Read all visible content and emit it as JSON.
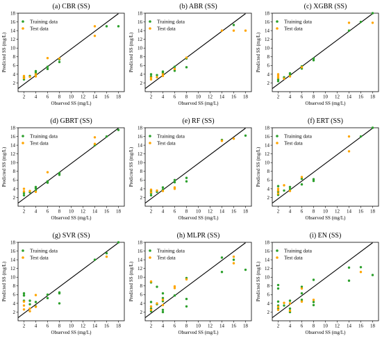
{
  "colors": {
    "training": "#2ca02c",
    "test": "#ffa500",
    "line": "#000000"
  },
  "shared": {
    "xlabel": "Observed SS (mg/L)",
    "ylabel": "Predicted SS (mg/L)",
    "xlim": [
      1,
      19
    ],
    "ylim": [
      0,
      18
    ],
    "xticks": [
      "2",
      "4",
      "6",
      "8",
      "10",
      "12",
      "14",
      "16",
      "18"
    ],
    "yticks": [
      "2",
      "4",
      "6",
      "8",
      "10",
      "12",
      "14",
      "16",
      "18"
    ],
    "legend": {
      "training": "Training data",
      "test": "Test data",
      "position": "upper-left"
    }
  },
  "chart_data": [
    {
      "type": "scatter",
      "title": "(a) CBR (SS)",
      "series": [
        {
          "name": "Training data",
          "points": [
            [
              2,
              2.8
            ],
            [
              2,
              3.3
            ],
            [
              3,
              3.6
            ],
            [
              4,
              3.9
            ],
            [
              4,
              4.3
            ],
            [
              4,
              4.7
            ],
            [
              6,
              5.2
            ],
            [
              6,
              5.7
            ],
            [
              8,
              6.8
            ],
            [
              8,
              7.4
            ],
            [
              16,
              15
            ],
            [
              18,
              15
            ]
          ]
        },
        {
          "name": "Test data",
          "points": [
            [
              2,
              3.1
            ],
            [
              2,
              3.6
            ],
            [
              3,
              3.4
            ],
            [
              4,
              3.5
            ],
            [
              4,
              4.0
            ],
            [
              6,
              7.7
            ],
            [
              8,
              7.6
            ],
            [
              14,
              15
            ],
            [
              14,
              12.8
            ]
          ]
        }
      ]
    },
    {
      "type": "scatter",
      "title": "(b) ABR (SS)",
      "series": [
        {
          "name": "Training data",
          "points": [
            [
              2,
              3.5
            ],
            [
              2,
              4.0
            ],
            [
              3,
              3.8
            ],
            [
              4,
              4.3
            ],
            [
              4,
              4.6
            ],
            [
              6,
              4.8
            ],
            [
              6,
              5.7
            ],
            [
              8,
              5.6
            ],
            [
              8,
              7.6
            ],
            [
              16,
              15.3
            ]
          ]
        },
        {
          "name": "Test data",
          "points": [
            [
              2,
              2.8
            ],
            [
              2,
              3.2
            ],
            [
              3,
              3.3
            ],
            [
              4,
              3.6
            ],
            [
              4,
              4.0
            ],
            [
              6,
              5.2
            ],
            [
              8,
              7.8
            ],
            [
              16,
              14
            ],
            [
              18,
              14
            ],
            [
              14,
              14
            ]
          ]
        }
      ]
    },
    {
      "type": "scatter",
      "title": "(c) XGBR (SS)",
      "series": [
        {
          "name": "Training data",
          "points": [
            [
              2,
              2.4
            ],
            [
              2,
              2.8
            ],
            [
              3,
              3.3
            ],
            [
              4,
              3.8
            ],
            [
              4,
              4.2
            ],
            [
              6,
              5.3
            ],
            [
              6,
              5.8
            ],
            [
              8,
              7.2
            ],
            [
              8,
              7.6
            ],
            [
              14,
              14
            ],
            [
              16,
              16
            ],
            [
              18,
              18
            ]
          ]
        },
        {
          "name": "Test data",
          "points": [
            [
              2,
              3.2
            ],
            [
              2,
              3.6
            ],
            [
              2,
              4.0
            ],
            [
              3,
              3.0
            ],
            [
              4,
              3.5
            ],
            [
              6,
              5.6
            ],
            [
              14,
              15.8
            ],
            [
              18,
              15.8
            ]
          ]
        }
      ]
    },
    {
      "type": "scatter",
      "title": "(d) GBRT (SS)",
      "series": [
        {
          "name": "Training data",
          "points": [
            [
              2,
              2.5
            ],
            [
              2,
              3.0
            ],
            [
              3,
              3.2
            ],
            [
              4,
              3.6
            ],
            [
              4,
              4.1
            ],
            [
              4,
              4.4
            ],
            [
              6,
              5.4
            ],
            [
              6,
              5.7
            ],
            [
              8,
              7.2
            ],
            [
              8,
              7.6
            ],
            [
              14,
              14
            ],
            [
              16,
              16
            ],
            [
              18,
              17.5
            ]
          ]
        },
        {
          "name": "Test data",
          "points": [
            [
              2,
              3.4
            ],
            [
              2,
              4.0
            ],
            [
              3,
              3.5
            ],
            [
              4,
              3.3
            ],
            [
              6,
              7.8
            ],
            [
              14,
              15.8
            ],
            [
              14,
              14.3
            ]
          ]
        }
      ]
    },
    {
      "type": "scatter",
      "title": "(e) RF (SS)",
      "series": [
        {
          "name": "Training data",
          "points": [
            [
              2,
              2.5
            ],
            [
              2,
              3.0
            ],
            [
              2,
              3.5
            ],
            [
              3,
              3.3
            ],
            [
              4,
              3.8
            ],
            [
              4,
              4.3
            ],
            [
              6,
              5.5
            ],
            [
              6,
              6.0
            ],
            [
              8,
              5.7
            ],
            [
              8,
              6.5
            ],
            [
              14,
              15.2
            ],
            [
              18,
              16.2
            ]
          ]
        },
        {
          "name": "Test data",
          "points": [
            [
              2,
              3.2
            ],
            [
              2,
              3.8
            ],
            [
              3,
              3.6
            ],
            [
              4,
              3.5
            ],
            [
              6,
              4.0
            ],
            [
              6,
              4.3
            ],
            [
              14,
              15
            ],
            [
              16,
              15.5
            ]
          ]
        }
      ]
    },
    {
      "type": "scatter",
      "title": "(f) ERT (SS)",
      "series": [
        {
          "name": "Training data",
          "points": [
            [
              2,
              2.6
            ],
            [
              2,
              3.3
            ],
            [
              2,
              4.6
            ],
            [
              3,
              3.6
            ],
            [
              4,
              3.9
            ],
            [
              4,
              4.4
            ],
            [
              6,
              5.0
            ],
            [
              6,
              6.3
            ],
            [
              8,
              5.8
            ],
            [
              8,
              6.2
            ],
            [
              16,
              16
            ],
            [
              18,
              18
            ]
          ]
        },
        {
          "name": "Test data",
          "points": [
            [
              2,
              2.9
            ],
            [
              2,
              3.6
            ],
            [
              2,
              4.0
            ],
            [
              3,
              4.8
            ],
            [
              4,
              3.5
            ],
            [
              6,
              6.7
            ],
            [
              14,
              16
            ],
            [
              14,
              12.6
            ]
          ]
        }
      ]
    },
    {
      "type": "scatter",
      "title": "(g) SVR (SS)",
      "series": [
        {
          "name": "Training data",
          "points": [
            [
              2,
              5.8
            ],
            [
              2,
              6.3
            ],
            [
              2,
              4.6
            ],
            [
              3,
              3.8
            ],
            [
              3,
              4.6
            ],
            [
              4,
              3.3
            ],
            [
              4,
              4.3
            ],
            [
              6,
              5.2
            ],
            [
              6,
              6.0
            ],
            [
              8,
              4.0
            ],
            [
              8,
              6.3
            ],
            [
              8,
              6.5
            ],
            [
              14,
              14
            ],
            [
              16,
              15.5
            ],
            [
              18,
              18
            ]
          ]
        },
        {
          "name": "Test data",
          "points": [
            [
              2,
              2.6
            ],
            [
              2,
              3.5
            ],
            [
              2,
              4.4
            ],
            [
              3,
              2.2
            ],
            [
              3,
              2.8
            ],
            [
              4,
              3.2
            ],
            [
              4,
              5.9
            ],
            [
              16,
              14.7
            ]
          ]
        }
      ]
    },
    {
      "type": "scatter",
      "title": "(h) MLPR (SS)",
      "series": [
        {
          "name": "Training data",
          "points": [
            [
              2,
              2.2
            ],
            [
              2,
              2.8
            ],
            [
              2,
              4.3
            ],
            [
              2,
              8.8
            ],
            [
              3,
              3.8
            ],
            [
              3,
              7.8
            ],
            [
              4,
              2.0
            ],
            [
              4,
              2.5
            ],
            [
              4,
              4.5
            ],
            [
              4,
              5.2
            ],
            [
              4,
              6.3
            ],
            [
              6,
              5.8
            ],
            [
              8,
              3.3
            ],
            [
              8,
              5.0
            ],
            [
              8,
              9.8
            ],
            [
              14,
              14.5
            ],
            [
              14,
              11.2
            ],
            [
              16,
              14
            ],
            [
              18,
              11.7
            ]
          ]
        },
        {
          "name": "Test data",
          "points": [
            [
              2,
              2.5
            ],
            [
              2,
              3.3
            ],
            [
              2,
              9.0
            ],
            [
              3,
              4.0
            ],
            [
              4,
              3.6
            ],
            [
              4,
              4.8
            ],
            [
              6,
              7.5
            ],
            [
              6,
              7.9
            ],
            [
              8,
              9.5
            ],
            [
              16,
              14.7
            ],
            [
              16,
              13.2
            ]
          ]
        }
      ]
    },
    {
      "type": "scatter",
      "title": "(i) EN (SS)",
      "series": [
        {
          "name": "Training data",
          "points": [
            [
              2,
              2.8
            ],
            [
              2,
              3.5
            ],
            [
              2,
              4.4
            ],
            [
              2,
              7.4
            ],
            [
              2,
              8.2
            ],
            [
              3,
              3.5
            ],
            [
              4,
              2.0
            ],
            [
              4,
              2.8
            ],
            [
              4,
              4.6
            ],
            [
              6,
              4.8
            ],
            [
              6,
              6.3
            ],
            [
              6,
              7.8
            ],
            [
              8,
              3.6
            ],
            [
              8,
              4.3
            ],
            [
              8,
              9.4
            ],
            [
              14,
              9.2
            ],
            [
              14,
              12.2
            ],
            [
              16,
              12.3
            ],
            [
              18,
              10.5
            ]
          ]
        },
        {
          "name": "Test data",
          "points": [
            [
              2,
              2.5
            ],
            [
              2,
              3.2
            ],
            [
              3,
              4.1
            ],
            [
              4,
              2.3
            ],
            [
              4,
              4.0
            ],
            [
              6,
              4.4
            ],
            [
              6,
              7.4
            ],
            [
              8,
              4.8
            ],
            [
              16,
              11.2
            ]
          ]
        }
      ]
    }
  ]
}
